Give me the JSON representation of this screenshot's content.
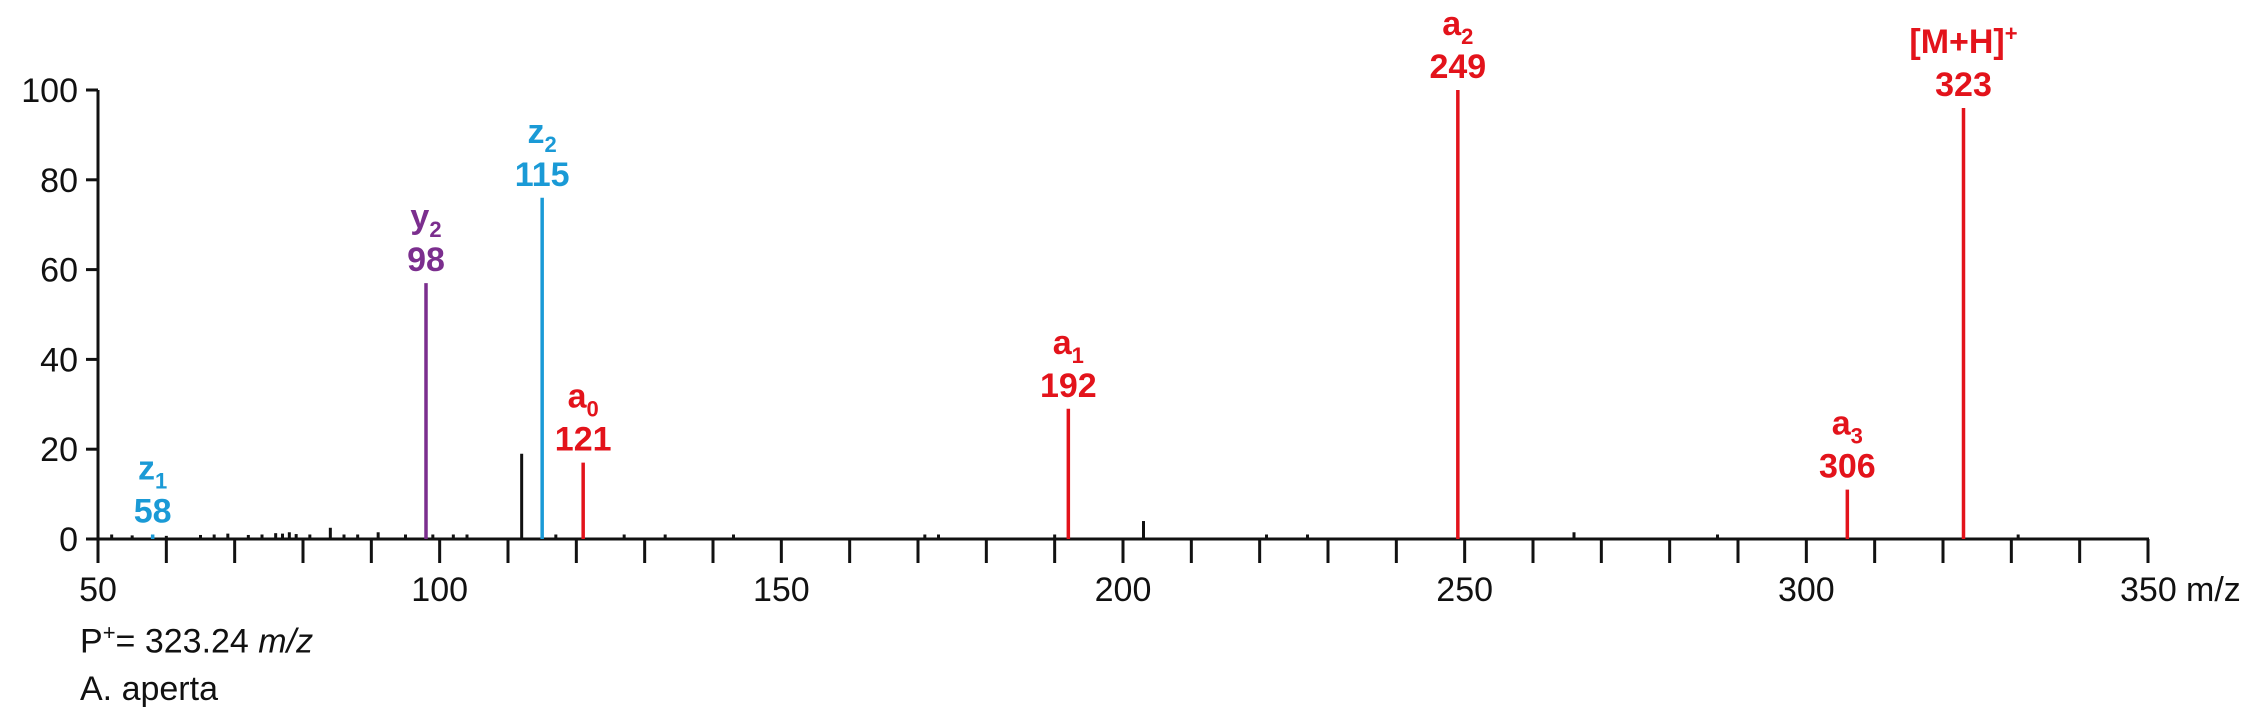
{
  "chart_data": {
    "type": "bar",
    "xlabel": "m/z",
    "ylabel": "",
    "xlim": [
      50,
      350
    ],
    "ylim": [
      0,
      100
    ],
    "x_ticks": [
      50,
      100,
      150,
      200,
      250,
      300,
      350
    ],
    "y_ticks": [
      0,
      20,
      40,
      60,
      80,
      100
    ],
    "colors": {
      "a": "#e3131b",
      "y": "#7b2e8e",
      "z": "#1a9ad6",
      "other": "#111111"
    },
    "peaks": [
      {
        "mz": 58,
        "intensity": 1,
        "ion": "z",
        "sub": "1",
        "label_mz": "58",
        "color": "#1a9ad6"
      },
      {
        "mz": 98,
        "intensity": 57,
        "ion": "y",
        "sub": "2",
        "label_mz": "98",
        "color": "#7b2e8e"
      },
      {
        "mz": 115,
        "intensity": 76,
        "ion": "z",
        "sub": "2",
        "label_mz": "115",
        "color": "#1a9ad6"
      },
      {
        "mz": 121,
        "intensity": 17,
        "ion": "a",
        "sub": "0",
        "label_mz": "121",
        "color": "#e3131b"
      },
      {
        "mz": 192,
        "intensity": 29,
        "ion": "a",
        "sub": "1",
        "label_mz": "192",
        "color": "#e3131b"
      },
      {
        "mz": 249,
        "intensity": 100,
        "ion": "a",
        "sub": "2",
        "label_mz": "249",
        "color": "#e3131b"
      },
      {
        "mz": 306,
        "intensity": 11,
        "ion": "a",
        "sub": "3",
        "label_mz": "306",
        "color": "#e3131b"
      },
      {
        "mz": 323,
        "intensity": 96,
        "ion": "[M+H]",
        "sup": "+",
        "label_mz": "323",
        "color": "#e3131b"
      }
    ],
    "minor_peaks": [
      {
        "mz": 52,
        "intensity": 1
      },
      {
        "mz": 55,
        "intensity": 0.8
      },
      {
        "mz": 60,
        "intensity": 0.7
      },
      {
        "mz": 65,
        "intensity": 0.9
      },
      {
        "mz": 67,
        "intensity": 1
      },
      {
        "mz": 69,
        "intensity": 1.2
      },
      {
        "mz": 72,
        "intensity": 0.9
      },
      {
        "mz": 74,
        "intensity": 1
      },
      {
        "mz": 76,
        "intensity": 1.3
      },
      {
        "mz": 77,
        "intensity": 1.2
      },
      {
        "mz": 78,
        "intensity": 1.5
      },
      {
        "mz": 79,
        "intensity": 1.1
      },
      {
        "mz": 81,
        "intensity": 1
      },
      {
        "mz": 84,
        "intensity": 2.5
      },
      {
        "mz": 86,
        "intensity": 1
      },
      {
        "mz": 88,
        "intensity": 1
      },
      {
        "mz": 91,
        "intensity": 1.5
      },
      {
        "mz": 95,
        "intensity": 1
      },
      {
        "mz": 99,
        "intensity": 1
      },
      {
        "mz": 102,
        "intensity": 1
      },
      {
        "mz": 104,
        "intensity": 1
      },
      {
        "mz": 112,
        "intensity": 19
      },
      {
        "mz": 117,
        "intensity": 1
      },
      {
        "mz": 127,
        "intensity": 1
      },
      {
        "mz": 133,
        "intensity": 1
      },
      {
        "mz": 143,
        "intensity": 1
      },
      {
        "mz": 171,
        "intensity": 1
      },
      {
        "mz": 173,
        "intensity": 1
      },
      {
        "mz": 190,
        "intensity": 1
      },
      {
        "mz": 203,
        "intensity": 4
      },
      {
        "mz": 221,
        "intensity": 1
      },
      {
        "mz": 227,
        "intensity": 1
      },
      {
        "mz": 266,
        "intensity": 1.5
      },
      {
        "mz": 287,
        "intensity": 1
      },
      {
        "mz": 331,
        "intensity": 1
      }
    ]
  },
  "notes": {
    "precursor_prefix": "P",
    "precursor_sup": "+",
    "precursor_value": "= 323.24 ",
    "precursor_unit": "m/z",
    "species": "A. aperta"
  }
}
